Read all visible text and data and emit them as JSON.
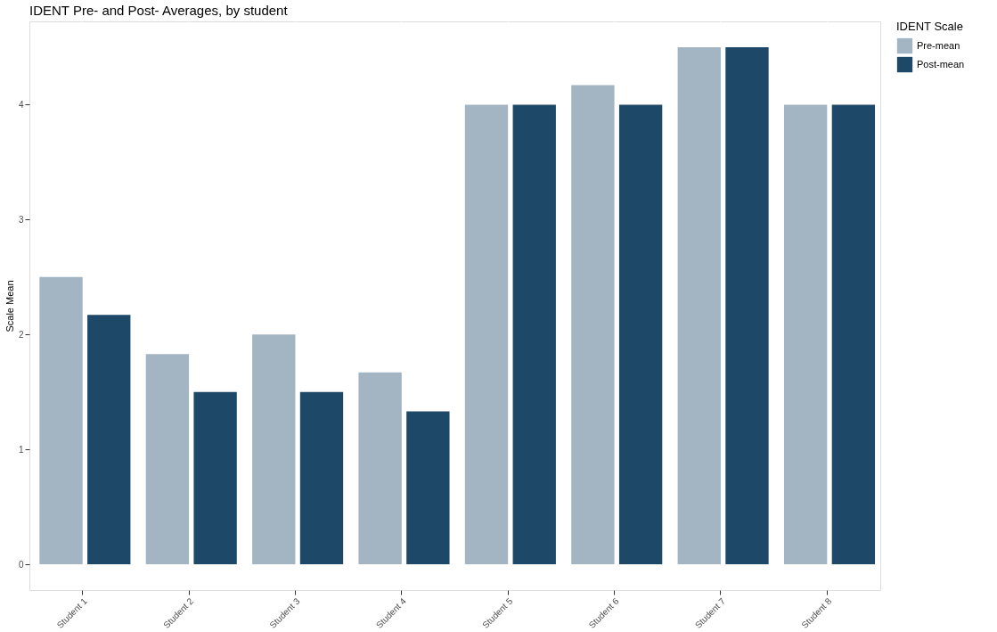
{
  "chart_data": {
    "type": "bar",
    "title": "IDENT Pre- and Post- Averages, by student",
    "ylabel": "Scale Mean",
    "legend_title": "IDENT Scale",
    "categories": [
      "Student 1",
      "Student 2",
      "Student 3",
      "Student 4",
      "Student 5",
      "Student 6",
      "Student 7",
      "Student 8"
    ],
    "series": [
      {
        "name": "Pre-mean",
        "color": "#a3b4c3",
        "values": [
          2.5,
          1.83,
          2.0,
          1.67,
          4.0,
          4.17,
          4.5,
          4.0
        ]
      },
      {
        "name": "Post-mean",
        "color": "#1d4868",
        "values": [
          2.17,
          1.5,
          1.5,
          1.33,
          4.0,
          4.0,
          4.5,
          4.0
        ]
      }
    ],
    "ylim": [
      -0.225,
      4.725
    ],
    "yticks": [
      0,
      1,
      2,
      3,
      4
    ],
    "grid": true,
    "legend": "right"
  }
}
